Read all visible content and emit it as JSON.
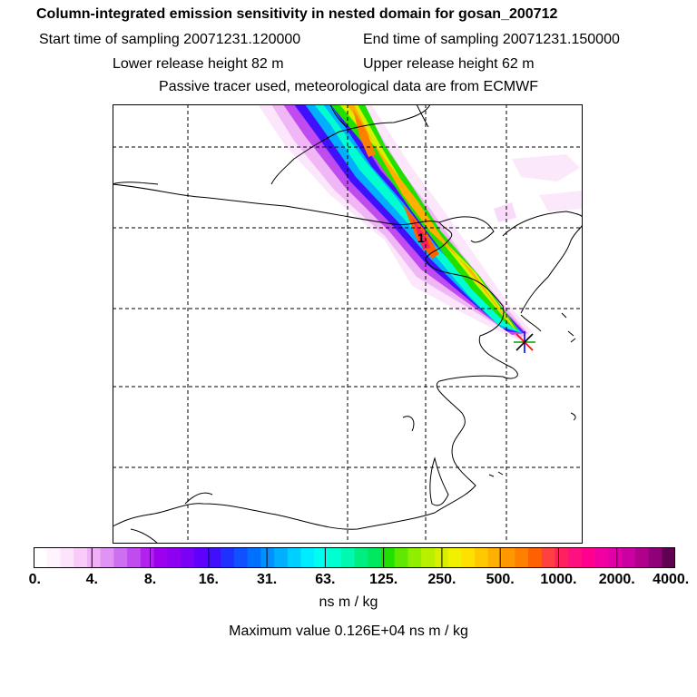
{
  "header": {
    "title": "Column-integrated emission sensitivity in nested domain for gosan_200712",
    "start_time": "Start time of sampling 20071231.120000",
    "end_time": "End time of sampling 20071231.150000",
    "lower_height": "Lower release height   82 m",
    "upper_height": "Upper release height   62 m",
    "tracer_note": "Passive tracer used, meteorological data are from ECMWF"
  },
  "map": {
    "marker_label": "1",
    "release_marker": "star-marker-icon"
  },
  "colorbar": {
    "labels": [
      "0.",
      "4.",
      "8.",
      "16.",
      "31.",
      "63.",
      "125.",
      "250.",
      "500.",
      "1000.",
      "2000.",
      "4000."
    ],
    "colors": [
      "#ffffff",
      "#fff3fe",
      "#fde4fd",
      "#f8cbfa",
      "#f0b0f7",
      "#e093f4",
      "#cc6ff0",
      "#c04cf0",
      "#b221f0",
      "#9d00ee",
      "#8f00f2",
      "#7a00f6",
      "#6000fa",
      "#4010fc",
      "#2030ff",
      "#1050ff",
      "#0070ff",
      "#0090ff",
      "#00b0ff",
      "#00d0ff",
      "#00ecff",
      "#00fff0",
      "#00ffd0",
      "#00f8b0",
      "#00ee80",
      "#00e860",
      "#20e000",
      "#60e800",
      "#90ee00",
      "#b8f000",
      "#d8f000",
      "#f0f000",
      "#ffe000",
      "#ffc800",
      "#ffb000",
      "#ff9800",
      "#ff8000",
      "#ff6000",
      "#ff4040",
      "#ff2060",
      "#ff1080",
      "#ff0090",
      "#f000a0",
      "#e000a8",
      "#cc00a0",
      "#b0008c",
      "#900078",
      "#600050"
    ],
    "units": "ns m / kg",
    "max_value": "Maximum value  0.126E+04 ns m / kg"
  }
}
